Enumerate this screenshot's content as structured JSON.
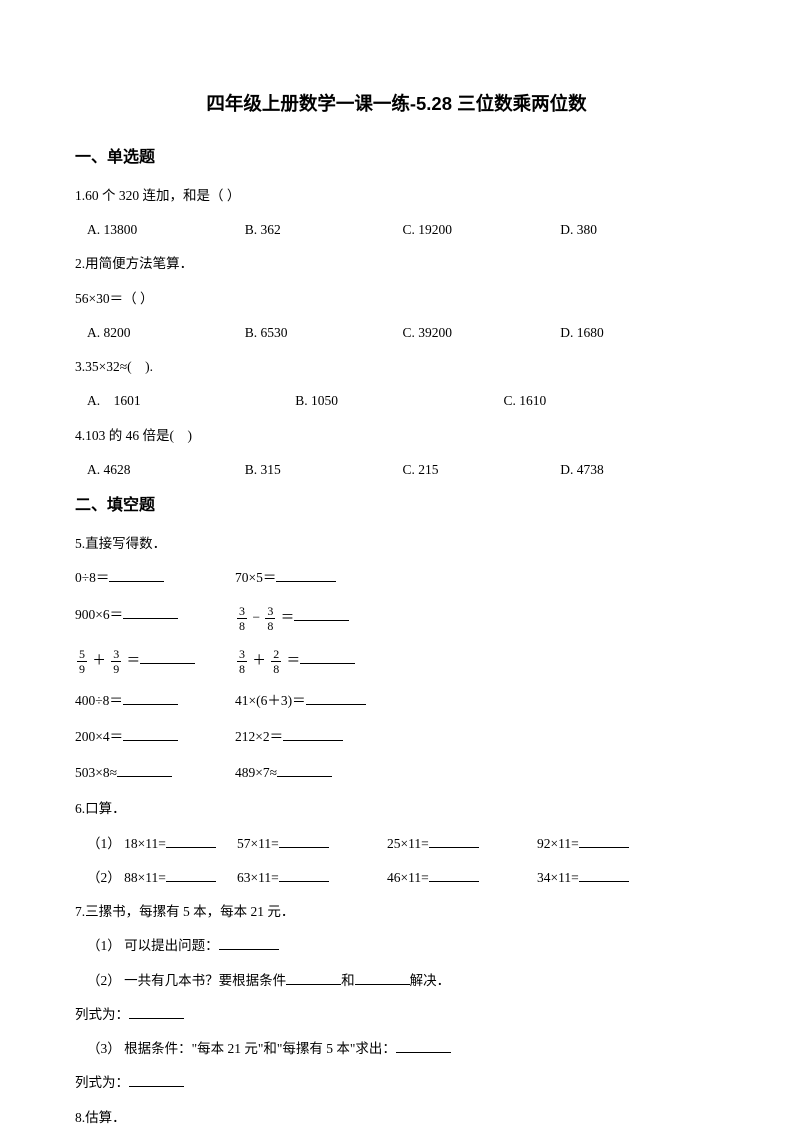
{
  "title": "四年级上册数学一课一练-5.28 三位数乘两位数",
  "sec1": "一、单选题",
  "q1": "1.60 个 320 连加，和是（  ）",
  "q1a": "A. 13800",
  "q1b": "B. 362",
  "q1c": "C. 19200",
  "q1d": "D. 380",
  "q2": "2.用简便方法笔算．",
  "q2expr": "56×30＝（  ）",
  "q2a": "A. 8200",
  "q2b": "B. 6530",
  "q2c": "C. 39200",
  "q2d": "D. 1680",
  "q3": "3.35×32≈( ).",
  "q3a": "A. 1601",
  "q3b": "B. 1050",
  "q3c": "C. 1610",
  "q4": "4.103 的 46 倍是( )",
  "q4a": "A. 4628",
  "q4b": "B. 315",
  "q4c": "C. 215",
  "q4d": "D. 4738",
  "sec2": "二、填空题",
  "q5": "5.直接写得数．",
  "q5r1a": "0÷8＝",
  "q5r1b": "70×5＝",
  "q5r2a": "900×6＝",
  "q5r3eq": "＝",
  "q5r4a": "400÷8＝",
  "q5r4b": "41×(6＋3)＝",
  "q5r5a": "200×4＝",
  "q5r5b": "212×2＝",
  "q5r6a": "503×8≈",
  "q5r6b": "489×7≈",
  "q6": "6.口算．",
  "q6r1_1": "（1） 18×11=",
  "q6r1_2": "57×11=",
  "q6r1_3": "25×11=",
  "q6r1_4": "92×11=",
  "q6r2_1": "（2） 88×11=",
  "q6r2_2": "63×11=",
  "q6r2_3": "46×11=",
  "q6r2_4": "34×11=",
  "q7": "7.三摞书，每摞有 5 本，每本 21 元．",
  "q7_1": "（1） 可以提出问题：",
  "q7_2a": "（2） 一共有几本书？要根据条件",
  "q7_2b": "和",
  "q7_2c": "解决．",
  "q7_ls": "列式为：",
  "q7_3": "（3） 根据条件：\"每本 21 元\"和\"每摞有 5 本\"求出：",
  "q8": "8.估算．",
  "frac": {
    "f3_8n": "3",
    "f3_8d": "8",
    "f5_9n": "5",
    "f5_9d": "9",
    "f3_9n": "3",
    "f3_9d": "9",
    "f2_8n": "2",
    "f2_8d": "8"
  },
  "ops": {
    "minus": "−",
    "plus": "＋",
    "eq": "＝"
  }
}
